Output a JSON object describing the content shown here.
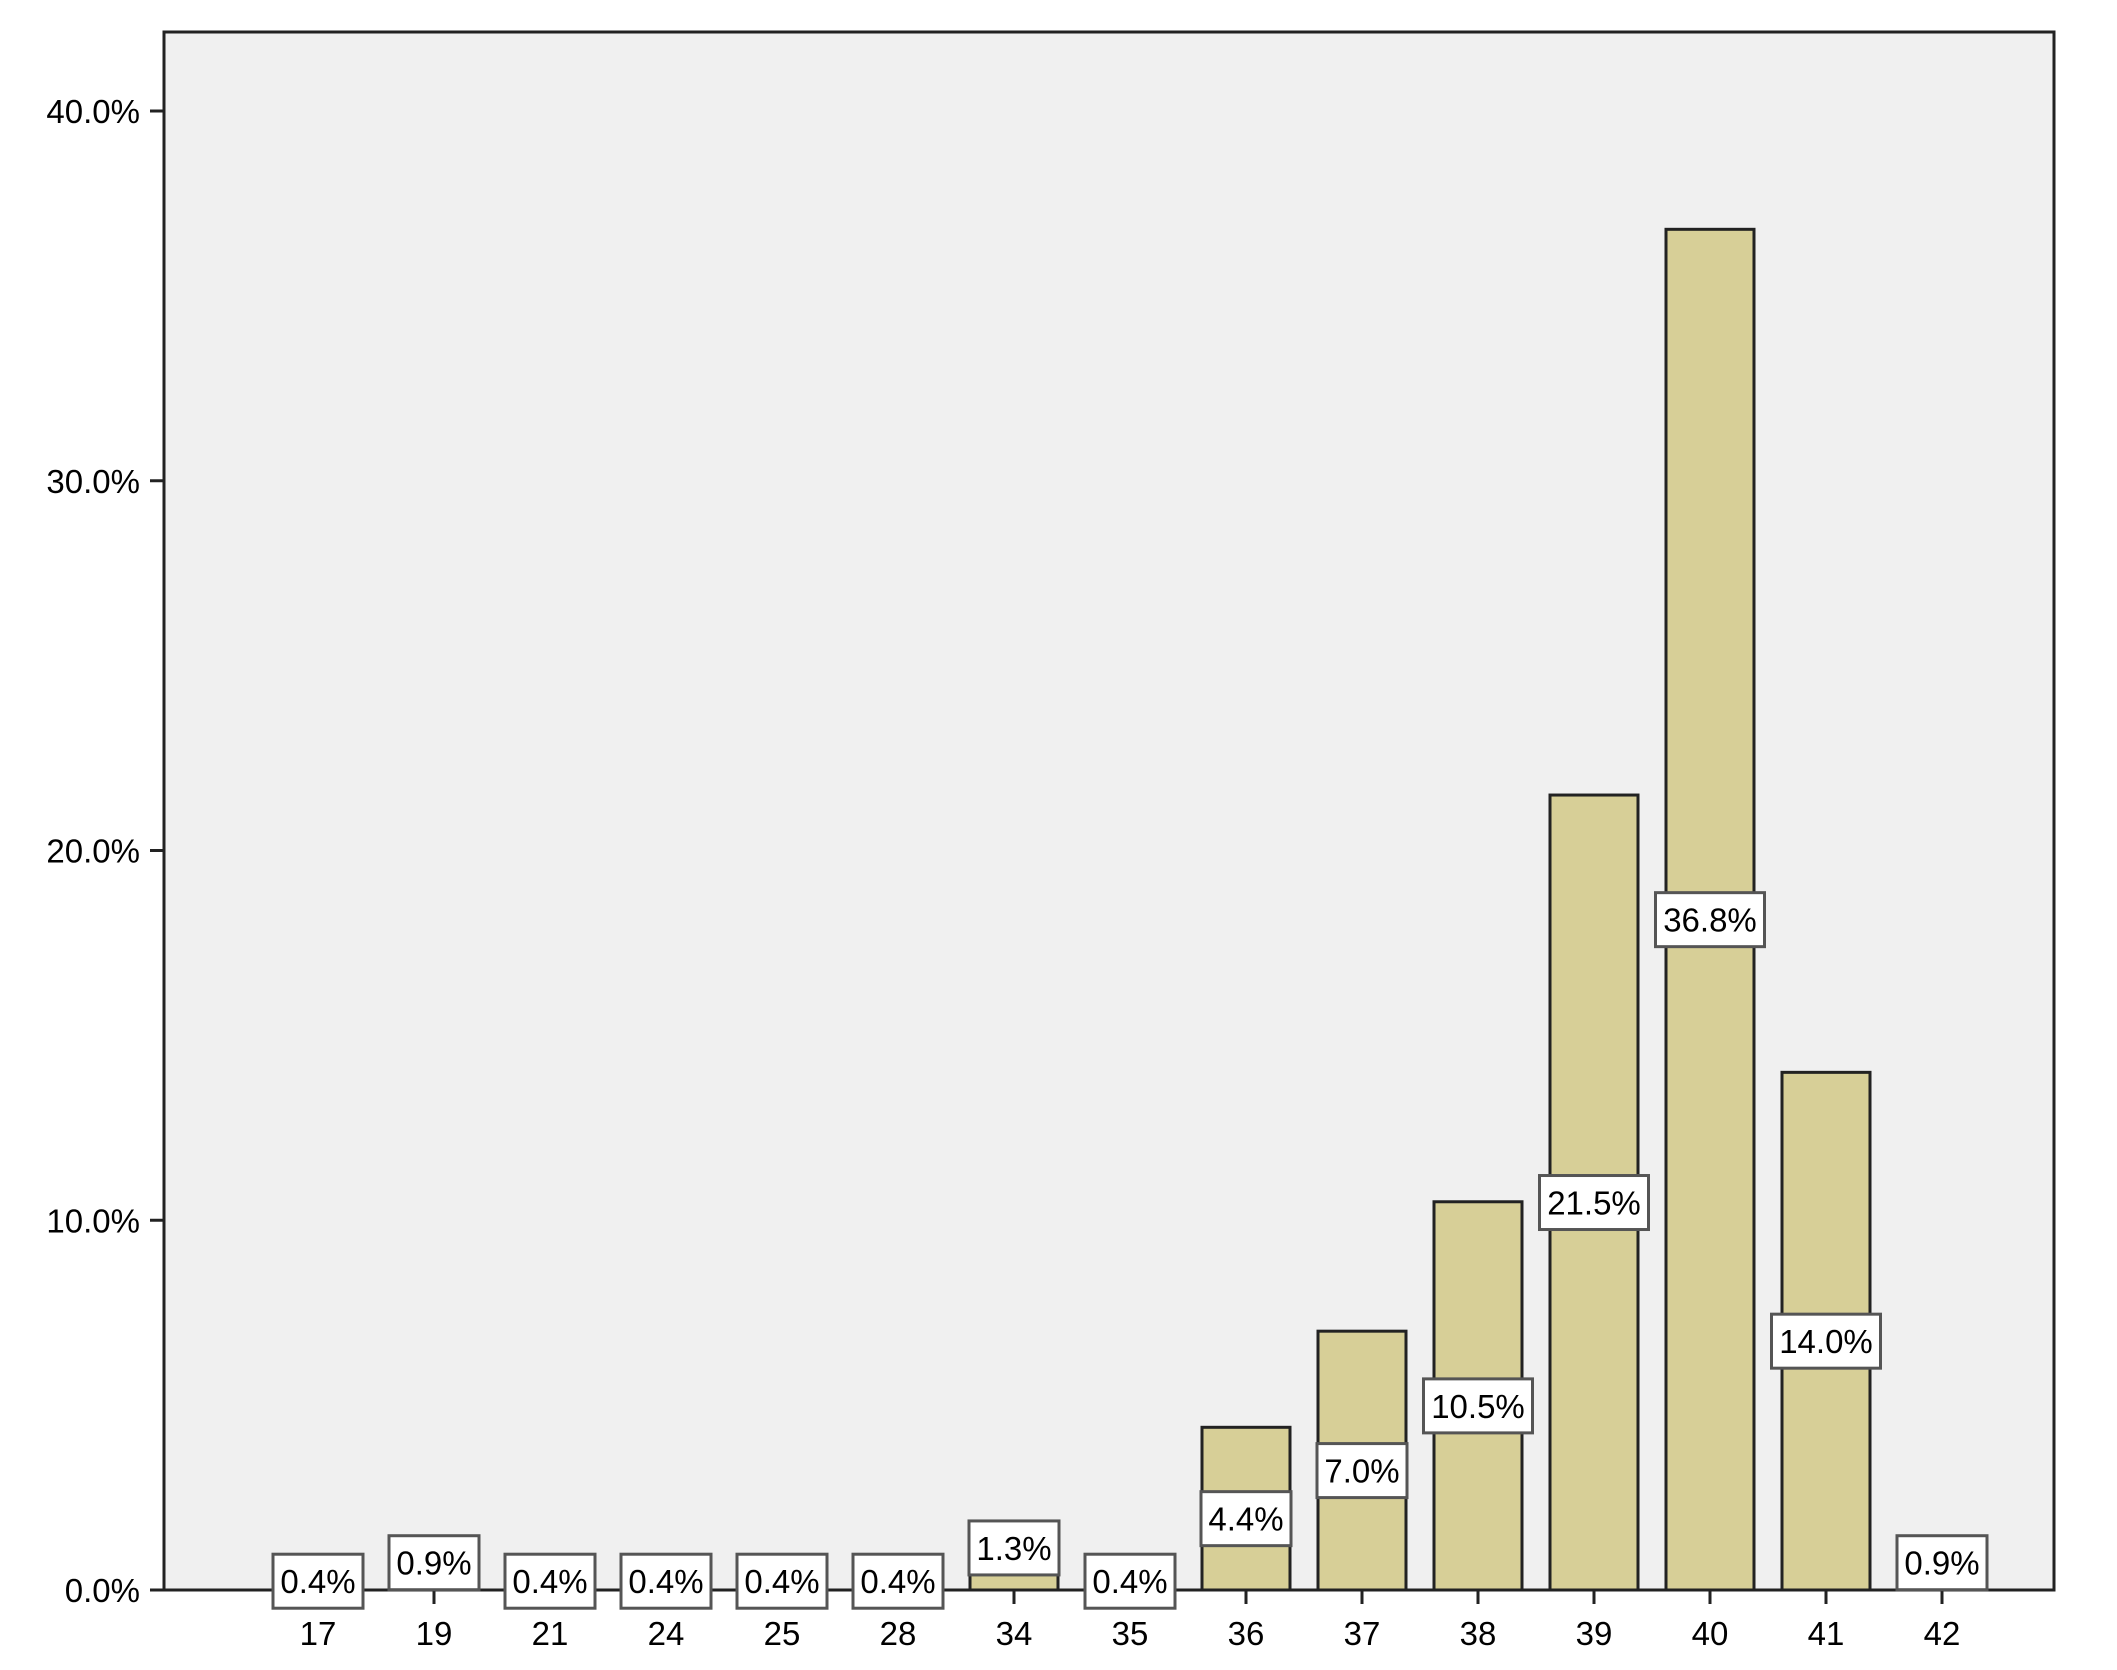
{
  "chart_data": {
    "type": "bar",
    "title": "",
    "xlabel": "",
    "ylabel": "",
    "categories": [
      "17",
      "19",
      "21",
      "24",
      "25",
      "28",
      "34",
      "35",
      "36",
      "37",
      "38",
      "39",
      "40",
      "41",
      "42"
    ],
    "values": [
      0.4,
      0.9,
      0.4,
      0.4,
      0.4,
      0.4,
      1.3,
      0.4,
      4.4,
      7.0,
      10.5,
      21.5,
      36.8,
      14.0,
      0.9
    ],
    "data_labels": [
      "0.4%",
      "0.9%",
      "0.4%",
      "0.4%",
      "0.4%",
      "0.4%",
      "1.3%",
      "0.4%",
      "4.4%",
      "7.0%",
      "10.5%",
      "21.5%",
      "36.8%",
      "14.0%",
      "0.9%"
    ],
    "ylim": [
      0,
      42
    ],
    "yticks": [
      0,
      10,
      20,
      30,
      40
    ],
    "ytick_labels": [
      "0.0%",
      "10.0%",
      "20.0%",
      "30.0%",
      "40.0%"
    ],
    "grid": false,
    "legend": "none",
    "colors": {
      "plot_background": "#f0f0f0",
      "bar_fill": "#d7cf97",
      "bar_stroke": "#222222",
      "label_box": "#ffffff"
    }
  }
}
